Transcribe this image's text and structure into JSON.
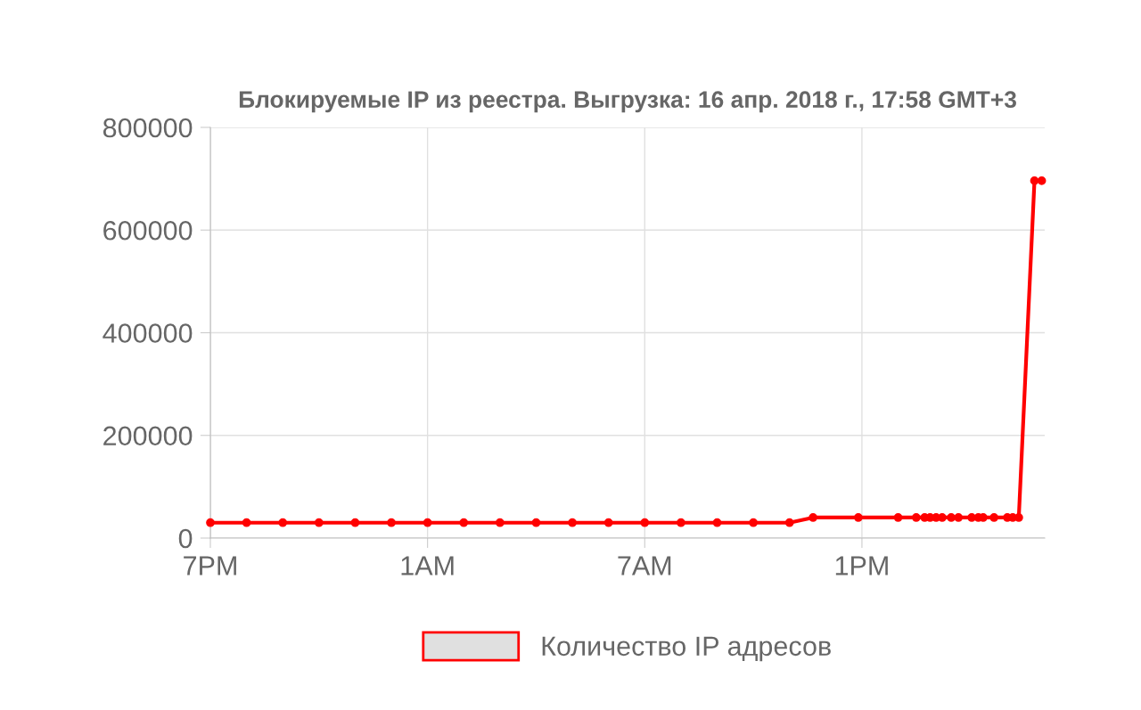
{
  "chart_data": {
    "type": "line",
    "title": "Блокируемые IP из реестра. Выгрузка: 16 апр. 2018 г., 17:58 GMT+3",
    "xlim": [
      "2018-04-15T19:00",
      "2018-04-16T18:03"
    ],
    "xticks": [
      {
        "value": "2018-04-15T19:00",
        "label": "7PM"
      },
      {
        "value": "2018-04-16T01:00",
        "label": "1AM"
      },
      {
        "value": "2018-04-16T07:00",
        "label": "7AM"
      },
      {
        "value": "2018-04-16T13:00",
        "label": "1PM"
      }
    ],
    "ylim": [
      0,
      800000
    ],
    "yticks": [
      0,
      200000,
      400000,
      600000,
      800000
    ],
    "grid": true,
    "legend": "bottom",
    "marker": "circle",
    "line_style": "solid",
    "series": [
      {
        "name": "Количество IP адресов",
        "color": "#ff0000",
        "x": [
          "2018-04-15T19:00",
          "2018-04-15T20:00",
          "2018-04-15T21:00",
          "2018-04-15T22:00",
          "2018-04-15T23:00",
          "2018-04-16T00:00",
          "2018-04-16T01:00",
          "2018-04-16T02:00",
          "2018-04-16T03:00",
          "2018-04-16T04:00",
          "2018-04-16T05:00",
          "2018-04-16T06:00",
          "2018-04-16T07:00",
          "2018-04-16T08:00",
          "2018-04-16T09:00",
          "2018-04-16T10:00",
          "2018-04-16T11:00",
          "2018-04-16T11:39",
          "2018-04-16T12:54",
          "2018-04-16T14:00",
          "2018-04-16T14:30",
          "2018-04-16T14:44",
          "2018-04-16T14:53",
          "2018-04-16T15:03",
          "2018-04-16T15:13",
          "2018-04-16T15:28",
          "2018-04-16T15:40",
          "2018-04-16T16:02",
          "2018-04-16T16:13",
          "2018-04-16T16:21",
          "2018-04-16T16:39",
          "2018-04-16T17:01",
          "2018-04-16T17:10",
          "2018-04-16T17:20",
          "2018-04-16T17:46",
          "2018-04-16T17:58"
        ],
        "values": [
          30000,
          30000,
          30000,
          30000,
          30000,
          30000,
          30000,
          30000,
          30000,
          30000,
          30000,
          30000,
          30000,
          30000,
          30000,
          30000,
          30000,
          40000,
          40000,
          40000,
          40000,
          40000,
          40000,
          40000,
          40000,
          40000,
          40000,
          40000,
          40000,
          40000,
          40000,
          40000,
          40000,
          40000,
          696000,
          696000
        ]
      }
    ]
  }
}
